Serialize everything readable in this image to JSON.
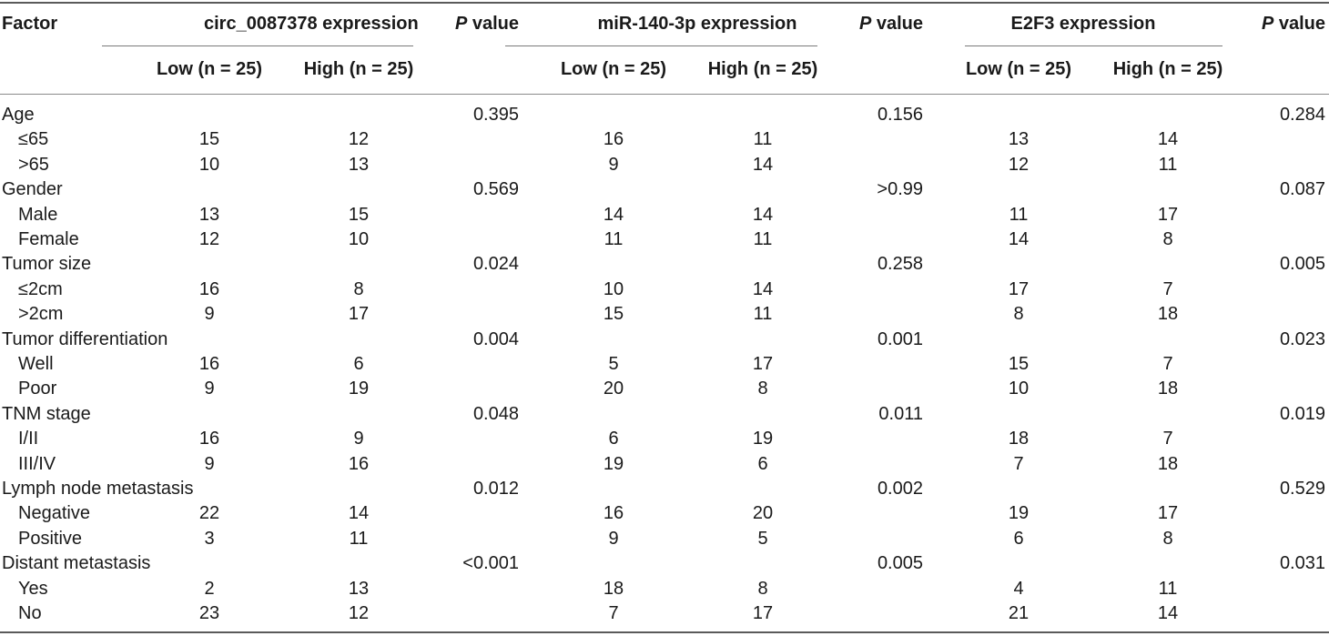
{
  "header": {
    "factor": "Factor",
    "groups": [
      {
        "name": "circ_0087378 expression",
        "low": "Low (n = 25)",
        "high": "High (n = 25)"
      },
      {
        "name": "miR-140-3p expression",
        "low": "Low (n = 25)",
        "high": "High (n = 25)"
      },
      {
        "name": "E2F3 expression",
        "low": "Low (n = 25)",
        "high": "High (n = 25)"
      }
    ],
    "p_italic": "P",
    "p_text": " value"
  },
  "rows": [
    {
      "label": "Age",
      "indent": false,
      "vals": [
        "",
        "",
        "0.395",
        "",
        "",
        "0.156",
        "",
        "",
        "0.284"
      ]
    },
    {
      "label": "≤65",
      "indent": true,
      "vals": [
        "15",
        "12",
        "",
        "16",
        "11",
        "",
        "13",
        "14",
        ""
      ]
    },
    {
      "label": ">65",
      "indent": true,
      "vals": [
        "10",
        "13",
        "",
        "9",
        "14",
        "",
        "12",
        "11",
        ""
      ]
    },
    {
      "label": "Gender",
      "indent": false,
      "vals": [
        "",
        "",
        "0.569",
        "",
        "",
        ">0.99",
        "",
        "",
        "0.087"
      ]
    },
    {
      "label": "Male",
      "indent": true,
      "vals": [
        "13",
        "15",
        "",
        "14",
        "14",
        "",
        "11",
        "17",
        ""
      ]
    },
    {
      "label": "Female",
      "indent": true,
      "vals": [
        "12",
        "10",
        "",
        "11",
        "11",
        "",
        "14",
        "8",
        ""
      ]
    },
    {
      "label": "Tumor size",
      "indent": false,
      "vals": [
        "",
        "",
        "0.024",
        "",
        "",
        "0.258",
        "",
        "",
        "0.005"
      ]
    },
    {
      "label": "≤2cm",
      "indent": true,
      "vals": [
        "16",
        "8",
        "",
        "10",
        "14",
        "",
        "17",
        "7",
        ""
      ]
    },
    {
      "label": ">2cm",
      "indent": true,
      "vals": [
        "9",
        "17",
        "",
        "15",
        "11",
        "",
        "8",
        "18",
        ""
      ]
    },
    {
      "label": "Tumor differentiation",
      "indent": false,
      "vals": [
        "",
        "",
        "0.004",
        "",
        "",
        "0.001",
        "",
        "",
        "0.023"
      ]
    },
    {
      "label": "Well",
      "indent": true,
      "vals": [
        "16",
        "6",
        "",
        "5",
        "17",
        "",
        "15",
        "7",
        ""
      ]
    },
    {
      "label": "Poor",
      "indent": true,
      "vals": [
        "9",
        "19",
        "",
        "20",
        "8",
        "",
        "10",
        "18",
        ""
      ]
    },
    {
      "label": "TNM stage",
      "indent": false,
      "vals": [
        "",
        "",
        "0.048",
        "",
        "",
        "0.011",
        "",
        "",
        "0.019"
      ]
    },
    {
      "label": "I/II",
      "indent": true,
      "vals": [
        "16",
        "9",
        "",
        "6",
        "19",
        "",
        "18",
        "7",
        ""
      ]
    },
    {
      "label": "III/IV",
      "indent": true,
      "vals": [
        "9",
        "16",
        "",
        "19",
        "6",
        "",
        "7",
        "18",
        ""
      ]
    },
    {
      "label": "Lymph node metastasis",
      "indent": false,
      "vals": [
        "",
        "",
        "0.012",
        "",
        "",
        "0.002",
        "",
        "",
        "0.529"
      ]
    },
    {
      "label": "Negative",
      "indent": true,
      "vals": [
        "22",
        "14",
        "",
        "16",
        "20",
        "",
        "19",
        "17",
        ""
      ]
    },
    {
      "label": "Positive",
      "indent": true,
      "vals": [
        "3",
        "11",
        "",
        "9",
        "5",
        "",
        "6",
        "8",
        ""
      ]
    },
    {
      "label": "Distant metastasis",
      "indent": false,
      "vals": [
        "",
        "",
        "<0.001",
        "",
        "",
        "0.005",
        "",
        "",
        "0.031"
      ]
    },
    {
      "label": "Yes",
      "indent": true,
      "vals": [
        "2",
        "13",
        "",
        "18",
        "8",
        "",
        "4",
        "11",
        ""
      ]
    },
    {
      "label": "No",
      "indent": true,
      "vals": [
        "23",
        "12",
        "",
        "7",
        "17",
        "",
        "21",
        "14",
        ""
      ]
    }
  ]
}
